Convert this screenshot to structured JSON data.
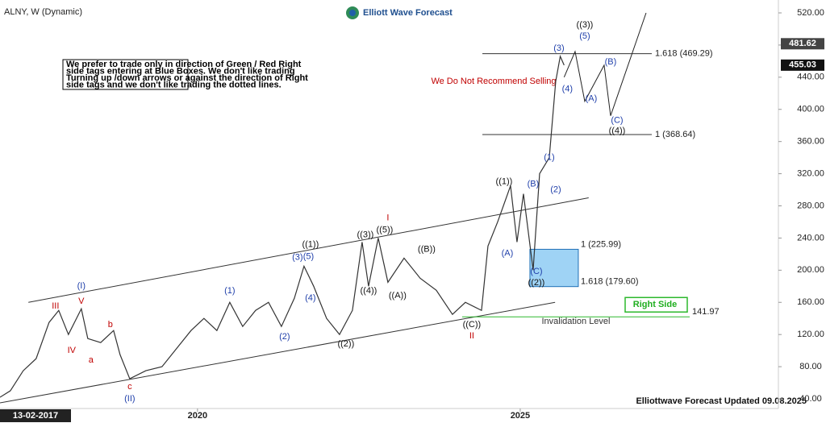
{
  "chart_data": {
    "type": "line",
    "title": "ALNY, W (Dynamic)",
    "brand": "Elliott Wave Forecast",
    "footer": "Elliottwave Forecast Updated 09.08.2025",
    "start_date_label": "13-02-2017",
    "note": [
      "We prefer to trade only in direction of Green / Red Right",
      "side tags entering at Blue Boxes. We don't like trading",
      "Turning up /down arrows or against the direction of Right",
      "side tags and we don't like trading the dotted lines."
    ],
    "warning": "We Do Not Recommend Selling",
    "xlim": [
      2016.94,
      2029
    ],
    "xticks": [
      2020,
      2025
    ],
    "ylim": [
      30,
      526
    ],
    "yticks": [
      {
        "value": 40,
        "label": "40.00"
      },
      {
        "value": 80,
        "label": "80.00"
      },
      {
        "value": 120,
        "label": "120.00"
      },
      {
        "value": 160,
        "label": "160.00"
      },
      {
        "value": 200,
        "label": "200.00"
      },
      {
        "value": 240,
        "label": "240.00"
      },
      {
        "value": 280,
        "label": "280.00"
      },
      {
        "value": 320,
        "label": "320.00"
      },
      {
        "value": 360,
        "label": "360.00"
      },
      {
        "value": 400,
        "label": "400.00"
      },
      {
        "value": 440,
        "label": "440.00"
      },
      {
        "value": 480,
        "label": "480.00"
      },
      {
        "value": 520,
        "label": "520.00"
      }
    ],
    "price_badges": [
      481.62,
      455.03
    ],
    "series": [
      {
        "name": "ALNY",
        "color": "#333333",
        "x": [
          2016.94,
          2017.1,
          2017.3,
          2017.5,
          2017.7,
          2017.85,
          2018.0,
          2018.2,
          2018.3,
          2018.5,
          2018.7,
          2018.8,
          2018.95,
          2019.2,
          2019.45,
          2019.7,
          2019.9,
          2020.1,
          2020.3,
          2020.5,
          2020.7,
          2020.9,
          2021.1,
          2021.3,
          2021.5,
          2021.65,
          2021.8,
          2022.0,
          2022.2,
          2022.4,
          2022.55,
          2022.65,
          2022.8,
          2022.95,
          2023.2,
          2023.45,
          2023.7,
          2023.95,
          2024.15,
          2024.4,
          2024.5,
          2024.65,
          2024.85,
          2024.95,
          2025.05,
          2025.2,
          2025.3,
          2025.45,
          2025.55,
          2025.62,
          2025.68
        ],
        "values": [
          42,
          50,
          75,
          90,
          135,
          150,
          120,
          152,
          115,
          110,
          125,
          95,
          65,
          75,
          80,
          105,
          125,
          140,
          125,
          160,
          130,
          150,
          160,
          130,
          165,
          205,
          180,
          140,
          120,
          150,
          235,
          180,
          240,
          185,
          215,
          190,
          175,
          145,
          160,
          150,
          230,
          260,
          305,
          235,
          295,
          200,
          320,
          340,
          435,
          466,
          455
        ]
      },
      {
        "name": "projection",
        "color": "#222222",
        "x": [
          2025.68,
          2025.85,
          2026.0,
          2026.3,
          2026.4,
          2026.95
        ],
        "values": [
          440,
          472,
          410,
          455,
          392,
          520
        ]
      }
    ],
    "channels": [
      {
        "x": [
          2017.38,
          2026.06
        ],
        "values": [
          160,
          290
        ]
      },
      {
        "x": [
          2016.94,
          2025.54
        ],
        "values": [
          35,
          160
        ]
      }
    ],
    "fibs": [
      {
        "value": 469.29,
        "label": "1.618 (469.29)"
      },
      {
        "value": 368.64,
        "label": "1 (368.64)"
      }
    ],
    "blue_box": {
      "x": [
        2025.15,
        2025.9
      ],
      "levels": [
        {
          "value": 225.99,
          "label": "1 (225.99)"
        },
        {
          "value": 179.6,
          "label": "1.618 (179.60)"
        }
      ]
    },
    "invalidation": {
      "value": 141.97,
      "label": "Invalidation Level",
      "tag": "Right Side"
    },
    "annotations": [
      {
        "x": 2018.2,
        "y": 180,
        "text": "(I)",
        "color": "#1f3faa"
      },
      {
        "x": 2018.2,
        "y": 161,
        "text": "V",
        "color": "#c00000"
      },
      {
        "x": 2017.8,
        "y": 155,
        "text": "III",
        "color": "#c00000"
      },
      {
        "x": 2018.05,
        "y": 100,
        "text": "IV",
        "color": "#c00000"
      },
      {
        "x": 2018.35,
        "y": 88,
        "text": "a",
        "color": "#c00000"
      },
      {
        "x": 2018.65,
        "y": 132,
        "text": "b",
        "color": "#c00000"
      },
      {
        "x": 2018.95,
        "y": 55,
        "text": "c",
        "color": "#c00000"
      },
      {
        "x": 2018.95,
        "y": 40,
        "text": "(II)",
        "color": "#1f3faa"
      },
      {
        "x": 2020.5,
        "y": 174,
        "text": "(1)",
        "color": "#1f3faa"
      },
      {
        "x": 2021.35,
        "y": 117,
        "text": "(2)",
        "color": "#1f3faa"
      },
      {
        "x": 2021.55,
        "y": 216,
        "text": "(3)",
        "color": "#1f3faa"
      },
      {
        "x": 2021.75,
        "y": 165,
        "text": "(4)",
        "color": "#1f3faa"
      },
      {
        "x": 2021.72,
        "y": 217,
        "text": "(5)",
        "color": "#1f3faa"
      },
      {
        "x": 2021.75,
        "y": 232,
        "text": "((1))",
        "color": "#111111"
      },
      {
        "x": 2022.3,
        "y": 108,
        "text": "((2))",
        "color": "#111111"
      },
      {
        "x": 2022.6,
        "y": 244,
        "text": "((3))",
        "color": "#111111"
      },
      {
        "x": 2022.65,
        "y": 174,
        "text": "((4))",
        "color": "#111111"
      },
      {
        "x": 2022.9,
        "y": 250,
        "text": "((5))",
        "color": "#111111"
      },
      {
        "x": 2022.95,
        "y": 265,
        "text": "I",
        "color": "#c00000"
      },
      {
        "x": 2023.1,
        "y": 168,
        "text": "((A))",
        "color": "#111111"
      },
      {
        "x": 2023.55,
        "y": 226,
        "text": "((B))",
        "color": "#111111"
      },
      {
        "x": 2024.25,
        "y": 132,
        "text": "((C))",
        "color": "#111111"
      },
      {
        "x": 2024.25,
        "y": 118,
        "text": "II",
        "color": "#c00000"
      },
      {
        "x": 2024.75,
        "y": 310,
        "text": "((1))",
        "color": "#111111"
      },
      {
        "x": 2024.8,
        "y": 221,
        "text": "(A)",
        "color": "#1f3faa"
      },
      {
        "x": 2025.2,
        "y": 307,
        "text": "(B)",
        "color": "#1f3faa"
      },
      {
        "x": 2025.25,
        "y": 198,
        "text": "(C)",
        "color": "#1f3faa"
      },
      {
        "x": 2025.25,
        "y": 184,
        "text": "((2))",
        "color": "#111111"
      },
      {
        "x": 2025.45,
        "y": 340,
        "text": "(1)",
        "color": "#1f3faa"
      },
      {
        "x": 2025.55,
        "y": 300,
        "text": "(2)",
        "color": "#1f3faa"
      },
      {
        "x": 2025.6,
        "y": 476,
        "text": "(3)",
        "color": "#1f3faa"
      },
      {
        "x": 2025.73,
        "y": 425,
        "text": "(4)",
        "color": "#1f3faa"
      },
      {
        "x": 2026.0,
        "y": 491,
        "text": "(5)",
        "color": "#1f3faa"
      },
      {
        "x": 2026.0,
        "y": 505,
        "text": "((3))",
        "color": "#111111"
      },
      {
        "x": 2026.1,
        "y": 413,
        "text": "(A)",
        "color": "#1f3faa"
      },
      {
        "x": 2026.4,
        "y": 459,
        "text": "(B)",
        "color": "#1f3faa"
      },
      {
        "x": 2026.5,
        "y": 386,
        "text": "(C)",
        "color": "#1f3faa"
      },
      {
        "x": 2026.5,
        "y": 373,
        "text": "((4))",
        "color": "#111111"
      }
    ]
  }
}
